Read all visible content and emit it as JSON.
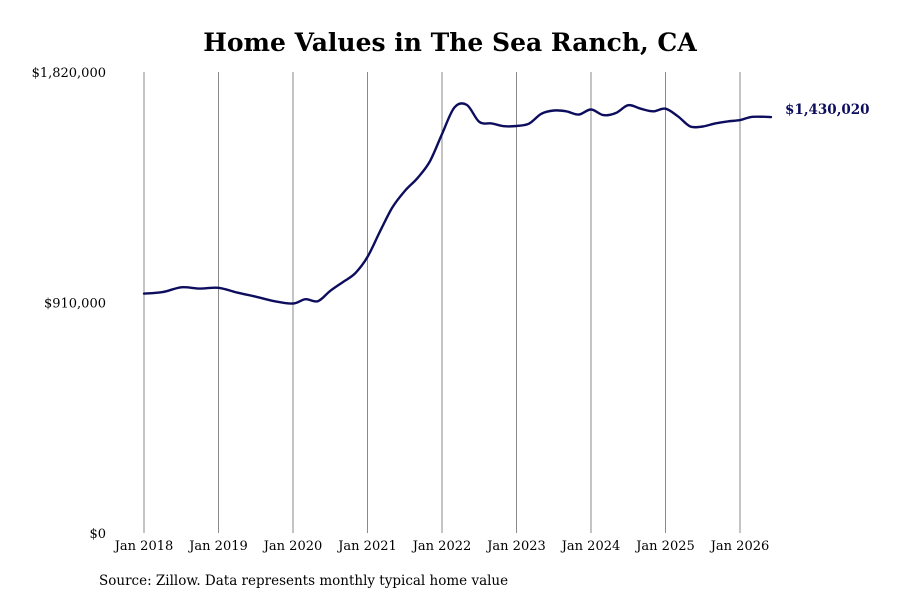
{
  "chart_data": {
    "type": "line",
    "title": "Home Values in The Sea Ranch, CA",
    "xlabel": "",
    "ylabel": "",
    "x_ticks": [
      "Jan 2018",
      "Jan 2019",
      "Jan 2020",
      "Jan 2021",
      "Jan 2022",
      "Jan 2023",
      "Jan 2024",
      "Jan 2025",
      "Jan 2026"
    ],
    "y_ticks": [
      "$0",
      "$910,000",
      "$1,820,000"
    ],
    "y_tick_values": [
      0,
      910000,
      1820000
    ],
    "ylim": [
      0,
      1820000
    ],
    "xlim": [
      "2018-01",
      "2026-06"
    ],
    "grid": "vertical lines at x ticks",
    "series": [
      {
        "name": "",
        "color": "#0d0d5e",
        "end_label": "$1,430,020",
        "x": [
          "2018-01",
          "2018-04",
          "2018-07",
          "2018-10",
          "2019-01",
          "2019-04",
          "2019-07",
          "2019-10",
          "2020-01",
          "2020-03",
          "2020-05",
          "2020-07",
          "2020-09",
          "2020-11",
          "2021-01",
          "2021-03",
          "2021-05",
          "2021-07",
          "2021-09",
          "2021-11",
          "2022-01",
          "2022-03",
          "2022-05",
          "2022-07",
          "2022-09",
          "2022-11",
          "2023-01",
          "2023-03",
          "2023-05",
          "2023-07",
          "2023-09",
          "2023-11",
          "2024-01",
          "2024-03",
          "2024-05",
          "2024-07",
          "2024-09",
          "2024-11",
          "2025-01",
          "2025-03",
          "2025-05",
          "2025-07",
          "2025-09",
          "2025-11",
          "2026-01",
          "2026-03",
          "2026-06"
        ],
        "y": [
          945000,
          951000,
          970000,
          965000,
          968000,
          949000,
          933000,
          915000,
          906000,
          923000,
          915000,
          956000,
          990000,
          1025000,
          1090000,
          1190000,
          1285000,
          1350000,
          1400000,
          1465000,
          1575000,
          1680000,
          1690000,
          1623000,
          1617000,
          1606000,
          1607000,
          1616000,
          1655000,
          1668000,
          1665000,
          1652000,
          1672000,
          1650000,
          1658000,
          1689000,
          1675000,
          1665000,
          1675000,
          1645000,
          1605000,
          1605000,
          1617000,
          1625000,
          1630000,
          1643000,
          1430020
        ]
      }
    ],
    "source_note": "Source: Zillow. Data represents monthly typical home value"
  }
}
